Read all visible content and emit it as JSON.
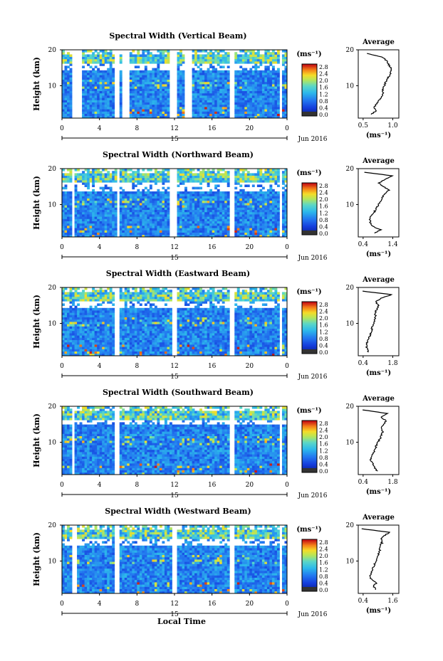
{
  "xlabel": "Local Time",
  "ylabel": "Height (km)",
  "date_label": "Jun 2016",
  "day_label": "15",
  "unit_label": "(ms⁻¹)",
  "profile_xlabel": "(ms⁻¹)",
  "colorbar_ticks": [
    "0.0",
    "0.4",
    "0.8",
    "1.2",
    "1.6",
    "2.0",
    "2.4",
    "2.8"
  ],
  "colors": {
    "low": "#0b1e8c",
    "mid": "#2aa7e8",
    "high": "#c81010"
  },
  "chart_data": [
    {
      "type": "heatmap",
      "title": "Spectral Width (Vertical Beam)",
      "x_ticks": [
        "0",
        "4",
        "8",
        "12",
        "16",
        "20",
        "0"
      ],
      "y_ticks": [
        "20",
        "10"
      ],
      "xlim": [
        0,
        24
      ],
      "ylim": [
        1,
        20
      ],
      "data_gaps_hours": [
        [
          1.1,
          2.0
        ],
        [
          5.5,
          6.0
        ],
        [
          6.4,
          7.3
        ],
        [
          11.6,
          12.2
        ],
        [
          13.2,
          13.8
        ],
        [
          17.9,
          18.3
        ],
        [
          23.2,
          23.4
        ]
      ],
      "upper_gap_km": [
        14.0,
        16.0
      ],
      "profile": {
        "title": "Average",
        "xlim": [
          0.4,
          1.1
        ],
        "x_ticks": [
          "0.5",
          "1.0"
        ],
        "y_ticks": [
          "20",
          "10"
        ],
        "heights": [
          2,
          3,
          4,
          5,
          6,
          7,
          8,
          9,
          10,
          11,
          12,
          13,
          14,
          15,
          16,
          17,
          18,
          19
        ],
        "values": [
          0.62,
          0.7,
          0.68,
          0.72,
          0.76,
          0.8,
          0.83,
          0.82,
          0.85,
          0.87,
          0.9,
          0.95,
          0.97,
          0.96,
          0.92,
          0.89,
          0.8,
          0.55
        ]
      }
    },
    {
      "type": "heatmap",
      "title": "Spectral Width (Northward Beam)",
      "x_ticks": [
        "0",
        "4",
        "8",
        "12",
        "16",
        "20",
        "0"
      ],
      "y_ticks": [
        "20",
        "10"
      ],
      "xlim": [
        0,
        24
      ],
      "ylim": [
        1,
        20
      ],
      "data_gaps_hours": [
        [
          1.1,
          1.3
        ],
        [
          5.8,
          6.2
        ],
        [
          11.6,
          12.4
        ],
        [
          17.9,
          18.3
        ],
        [
          23.2,
          23.4
        ]
      ],
      "upper_gap_km": [
        13.5,
        16.0
      ],
      "profile": {
        "title": "Average",
        "xlim": [
          0.4,
          1.4
        ],
        "x_ticks": [
          "0.4",
          "1.4"
        ],
        "y_ticks": [
          "20",
          "10"
        ],
        "heights": [
          2,
          3,
          4,
          5,
          6,
          7,
          8,
          9,
          10,
          11,
          12,
          13,
          14,
          15,
          16,
          17,
          18,
          19
        ],
        "values": [
          0.8,
          0.95,
          0.75,
          0.7,
          0.68,
          0.72,
          0.8,
          0.85,
          0.9,
          0.95,
          1.0,
          1.05,
          1.15,
          1.02,
          0.9,
          1.05,
          1.25,
          0.55
        ]
      }
    },
    {
      "type": "heatmap",
      "title": "Spectral Width (Eastward Beam)",
      "x_ticks": [
        "0",
        "4",
        "8",
        "12",
        "16",
        "20",
        "0"
      ],
      "y_ticks": [
        "20",
        "10"
      ],
      "xlim": [
        0,
        24
      ],
      "ylim": [
        1,
        20
      ],
      "data_gaps_hours": [
        [
          5.6,
          6.2
        ],
        [
          11.7,
          12.3
        ],
        [
          17.9,
          18.3
        ],
        [
          23.2,
          23.4
        ]
      ],
      "upper_gap_km": [
        14.0,
        16.0
      ],
      "profile": {
        "title": "Average",
        "xlim": [
          0.4,
          1.8
        ],
        "x_ticks": [
          "0.4",
          "1.8"
        ],
        "y_ticks": [
          "20",
          "10"
        ],
        "heights": [
          2,
          3,
          4,
          5,
          6,
          7,
          8,
          9,
          10,
          11,
          12,
          13,
          14,
          15,
          16,
          17,
          18,
          19
        ],
        "values": [
          0.75,
          0.7,
          0.68,
          0.72,
          0.78,
          0.82,
          0.86,
          0.88,
          0.92,
          0.96,
          1.0,
          0.98,
          1.05,
          1.1,
          1.0,
          1.2,
          1.55,
          0.55
        ]
      }
    },
    {
      "type": "heatmap",
      "title": "Spectral Width (Southward Beam)",
      "x_ticks": [
        "0",
        "4",
        "8",
        "12",
        "16",
        "20",
        "0"
      ],
      "y_ticks": [
        "20",
        "10"
      ],
      "xlim": [
        0,
        24
      ],
      "ylim": [
        1,
        20
      ],
      "data_gaps_hours": [
        [
          1.0,
          1.3
        ],
        [
          5.6,
          6.2
        ],
        [
          17.9,
          18.3
        ],
        [
          23.2,
          23.4
        ]
      ],
      "upper_gap_km": [
        15.0,
        16.5
      ],
      "profile": {
        "title": "Average",
        "xlim": [
          0.4,
          1.8
        ],
        "x_ticks": [
          "0.4",
          "1.8"
        ],
        "y_ticks": [
          "20",
          "10"
        ],
        "heights": [
          2,
          3,
          4,
          5,
          6,
          7,
          8,
          9,
          10,
          11,
          12,
          13,
          14,
          15,
          16,
          17,
          18,
          19
        ],
        "values": [
          1.05,
          0.95,
          0.9,
          0.82,
          0.86,
          0.92,
          0.98,
          1.02,
          1.08,
          1.15,
          1.2,
          1.25,
          1.2,
          1.3,
          1.35,
          1.2,
          1.4,
          0.55
        ]
      }
    },
    {
      "type": "heatmap",
      "title": "Spectral Width (Westward Beam)",
      "x_ticks": [
        "0",
        "4",
        "8",
        "12",
        "16",
        "20",
        "0"
      ],
      "y_ticks": [
        "20",
        "10"
      ],
      "xlim": [
        0,
        24
      ],
      "ylim": [
        1,
        20
      ],
      "data_gaps_hours": [
        [
          1.1,
          1.5
        ],
        [
          5.6,
          6.2
        ],
        [
          11.7,
          12.3
        ],
        [
          17.9,
          18.3
        ],
        [
          23.2,
          23.4
        ]
      ],
      "upper_gap_km": [
        14.0,
        16.0
      ],
      "profile": {
        "title": "Average",
        "xlim": [
          0.4,
          1.6
        ],
        "x_ticks": [
          "0.4",
          "1.6"
        ],
        "y_ticks": [
          "20",
          "10"
        ],
        "heights": [
          2,
          3,
          4,
          5,
          6,
          7,
          8,
          9,
          10,
          11,
          12,
          13,
          14,
          15,
          16,
          17,
          18,
          19
        ],
        "values": [
          0.92,
          0.85,
          0.95,
          0.78,
          0.75,
          0.8,
          0.84,
          0.88,
          0.92,
          0.97,
          1.0,
          1.05,
          1.02,
          1.1,
          1.08,
          1.15,
          1.35,
          0.5
        ]
      }
    }
  ]
}
